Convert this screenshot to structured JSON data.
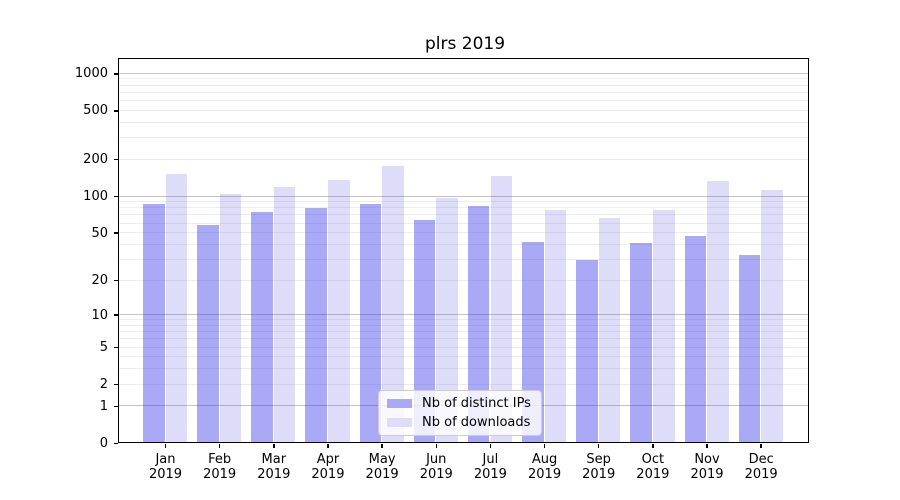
{
  "title": "plrs 2019",
  "chart_data": {
    "type": "bar",
    "title": "plrs 2019",
    "categories": [
      "Jan",
      "Feb",
      "Mar",
      "Apr",
      "May",
      "Jun",
      "Jul",
      "Aug",
      "Sep",
      "Oct",
      "Nov",
      "Dec"
    ],
    "year_label": "2019",
    "series": [
      {
        "name": "Nb of distinct IPs",
        "color": "#aaa9f5",
        "fill": "rgba(53,50,231,0.42)",
        "values": [
          84,
          57,
          73,
          79,
          84,
          62,
          81,
          41,
          29,
          40,
          46,
          32
        ]
      },
      {
        "name": "Nb of downloads",
        "color": "#dddcf9",
        "fill": "rgba(85,80,225,0.20)",
        "values": [
          150,
          103,
          117,
          133,
          172,
          95,
          143,
          75,
          65,
          75,
          131,
          110
        ]
      }
    ],
    "yscale": "log1p",
    "ylim": [
      0,
      1300
    ],
    "y_ticks": [
      0,
      1,
      2,
      5,
      10,
      20,
      50,
      100,
      200,
      500,
      1000
    ],
    "y_major_gridlines": [
      1,
      10,
      100,
      1000
    ],
    "y_minor_gridlines": [
      2,
      3,
      4,
      5,
      6,
      7,
      8,
      9,
      20,
      30,
      40,
      50,
      60,
      70,
      80,
      90,
      200,
      300,
      400,
      500,
      600,
      700,
      800,
      900
    ],
    "grid": true,
    "legend_position": "lower center"
  },
  "colors": {
    "background": "#ffffff",
    "axis": "#000000",
    "major_grid": "#c3c3c3",
    "minor_grid": "#ededed",
    "legend_border": "#cccccc"
  }
}
